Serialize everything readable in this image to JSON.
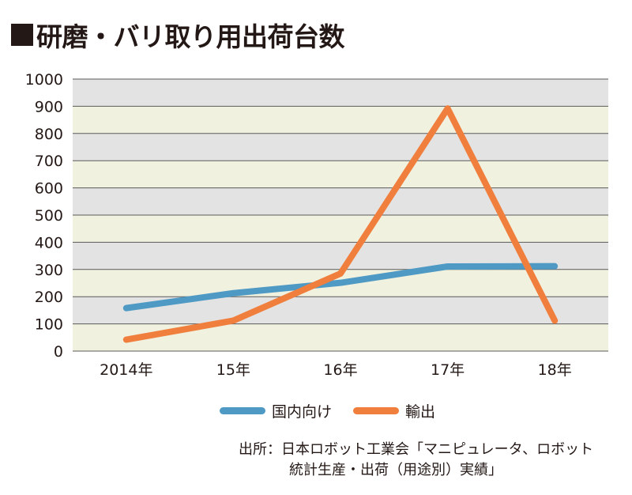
{
  "title": "研磨・バリ取り用出荷台数",
  "chart_data": {
    "type": "line",
    "title": "研磨・バリ取り用出荷台数",
    "categories": [
      "2014年",
      "15年",
      "16年",
      "17年",
      "18年"
    ],
    "ylim": [
      0,
      1000
    ],
    "yticks": [
      0,
      100,
      200,
      300,
      400,
      500,
      600,
      700,
      800,
      900,
      1000
    ],
    "grid": true,
    "legend_position": "bottom",
    "series": [
      {
        "name": "国内向け",
        "color": "#4f9ac4",
        "values": [
          158,
          213,
          251,
          311,
          312
        ]
      },
      {
        "name": "輸出",
        "color": "#f07f3e",
        "values": [
          42,
          112,
          285,
          892,
          112
        ]
      }
    ]
  },
  "source": {
    "label": "出所：",
    "line1": "日本ロボット工業会「マニピュレータ、ロボット",
    "line2": "統計生産・出荷（用途別）実績」"
  }
}
